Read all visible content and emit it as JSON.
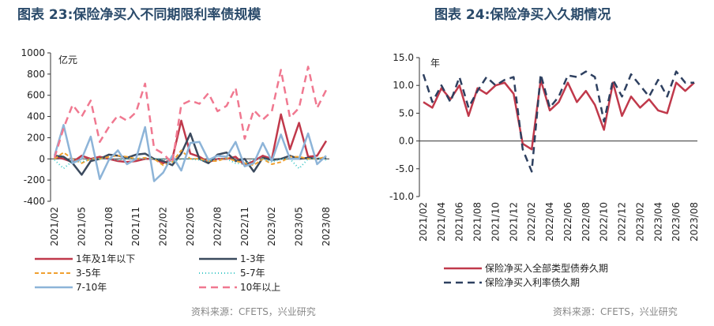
{
  "left": {
    "title": "图表 23:保险净买入不同期限利率债规模",
    "source": "资料来源：CFETS，兴业研究",
    "chart_data": {
      "type": "line",
      "unit": "亿元",
      "ylim": [
        -400,
        1000
      ],
      "yticks": [
        -400,
        -200,
        0,
        200,
        400,
        600,
        800,
        1000
      ],
      "categories": [
        "2021/02",
        "2021/03",
        "2021/04",
        "2021/05",
        "2021/06",
        "2021/07",
        "2021/08",
        "2021/09",
        "2021/10",
        "2021/11",
        "2021/12",
        "2022/01",
        "2022/02",
        "2022/03",
        "2022/04",
        "2022/05",
        "2022/06",
        "2022/07",
        "2022/08",
        "2022/09",
        "2022/10",
        "2022/11",
        "2022/12",
        "2023/01",
        "2023/02",
        "2023/03",
        "2023/04",
        "2023/05",
        "2023/06",
        "2023/07",
        "2023/08"
      ],
      "tick_labels": [
        "2021/02",
        "2021/05",
        "2021/08",
        "2021/11",
        "2022/02",
        "2022/05",
        "2022/08",
        "2022/11",
        "2023/02",
        "2023/05",
        "2023/08"
      ],
      "grid": false,
      "legend_position": "bottom",
      "series": [
        {
          "name": "1年及1年以下",
          "color": "#c0394b",
          "dash": "solid",
          "width": 2.5,
          "values": [
            20,
            0,
            -30,
            30,
            0,
            20,
            0,
            -20,
            -30,
            -20,
            0,
            0,
            -40,
            0,
            360,
            50,
            20,
            -30,
            0,
            0,
            20,
            -60,
            -20,
            30,
            0,
            420,
            90,
            340,
            20,
            30,
            170
          ]
        },
        {
          "name": "1-3年",
          "color": "#3b4a5e",
          "dash": "solid",
          "width": 2.5,
          "values": [
            30,
            20,
            -40,
            -150,
            -20,
            0,
            40,
            30,
            10,
            40,
            50,
            0,
            -20,
            -60,
            50,
            240,
            0,
            -40,
            40,
            60,
            -20,
            0,
            -120,
            10,
            -10,
            0,
            30,
            0,
            10,
            0,
            10
          ]
        },
        {
          "name": "3-5年",
          "color": "#f0a030",
          "dash": "5,3",
          "width": 2,
          "values": [
            0,
            60,
            0,
            -40,
            0,
            0,
            20,
            30,
            20,
            0,
            10,
            0,
            -60,
            -30,
            80,
            0,
            0,
            -20,
            -20,
            10,
            -20,
            -40,
            -60,
            0,
            -50,
            -30,
            20,
            20,
            0,
            0,
            20
          ]
        },
        {
          "name": "5-7年",
          "color": "#40c8c8",
          "dash": "1,3",
          "width": 2,
          "values": [
            -10,
            -90,
            -20,
            -30,
            0,
            0,
            0,
            -10,
            0,
            0,
            0,
            0,
            0,
            -30,
            0,
            0,
            -10,
            -20,
            0,
            0,
            -40,
            -50,
            0,
            0,
            -30,
            0,
            0,
            -90,
            0,
            0,
            -10
          ]
        },
        {
          "name": "7-10年",
          "color": "#8db4d8",
          "dash": "solid",
          "width": 2.5,
          "values": [
            30,
            320,
            -40,
            0,
            210,
            -190,
            -10,
            80,
            -50,
            0,
            300,
            -210,
            -130,
            30,
            -110,
            150,
            160,
            -10,
            30,
            20,
            160,
            -70,
            -40,
            150,
            -20,
            230,
            0,
            0,
            240,
            -50,
            30
          ]
        },
        {
          "name": "10年以上",
          "color": "#f07890",
          "dash": "9,6",
          "width": 2.5,
          "values": [
            10,
            290,
            510,
            400,
            550,
            160,
            300,
            410,
            360,
            440,
            710,
            100,
            50,
            -40,
            510,
            550,
            520,
            620,
            450,
            500,
            670,
            190,
            460,
            370,
            450,
            840,
            390,
            480,
            870,
            480,
            650
          ]
        }
      ]
    }
  },
  "right": {
    "title": "图表 24:保险净买入久期情况",
    "source": "资料来源：CFETS，兴业研究",
    "chart_data": {
      "type": "line",
      "unit": "年",
      "ylim": [
        -10,
        15
      ],
      "yticks": [
        -10.0,
        -5.0,
        0.0,
        5.0,
        10.0,
        15.0
      ],
      "categories": [
        "2021/02",
        "2021/03",
        "2021/04",
        "2021/05",
        "2021/06",
        "2021/07",
        "2021/08",
        "2021/09",
        "2021/10",
        "2021/11",
        "2021/12",
        "2022/01",
        "2022/02",
        "2022/03",
        "2022/04",
        "2022/05",
        "2022/06",
        "2022/07",
        "2022/08",
        "2022/09",
        "2022/10",
        "2022/11",
        "2022/12",
        "2023/01",
        "2023/02",
        "2023/03",
        "2023/04",
        "2023/05",
        "2023/06",
        "2023/07",
        "2023/08"
      ],
      "tick_labels": [
        "2021/02",
        "2021/04",
        "2021/06",
        "2021/08",
        "2021/10",
        "2021/12",
        "2022/02",
        "2022/04",
        "2022/06",
        "2022/08",
        "2022/10",
        "2022/12",
        "2023/02",
        "2023/04",
        "2023/06",
        "2023/08"
      ],
      "grid": false,
      "legend_position": "bottom",
      "series": [
        {
          "name": "保险净买入全部类型债券久期",
          "color": "#c0394b",
          "dash": "solid",
          "width": 2.5,
          "values": [
            7.0,
            6.0,
            9.5,
            7.5,
            10.0,
            4.5,
            9.5,
            8.5,
            10.0,
            10.5,
            8.5,
            -0.5,
            -1.5,
            11.0,
            5.5,
            7.0,
            10.5,
            7.0,
            9.0,
            6.5,
            2.0,
            10.5,
            4.5,
            8.0,
            6.0,
            7.5,
            5.5,
            5.0,
            10.5,
            9.0,
            10.5
          ]
        },
        {
          "name": "保险净买入利率债久期",
          "color": "#2e4060",
          "dash": "9,6",
          "width": 2.5,
          "values": [
            12.0,
            7.0,
            10.0,
            7.0,
            11.5,
            6.0,
            9.0,
            11.5,
            10.0,
            11.0,
            11.5,
            -1.5,
            -5.5,
            12.0,
            6.0,
            8.0,
            11.8,
            11.5,
            12.5,
            11.5,
            3.5,
            11.0,
            8.0,
            12.0,
            10.0,
            8.0,
            11.0,
            8.0,
            12.5,
            10.5,
            10.5
          ]
        }
      ]
    }
  }
}
